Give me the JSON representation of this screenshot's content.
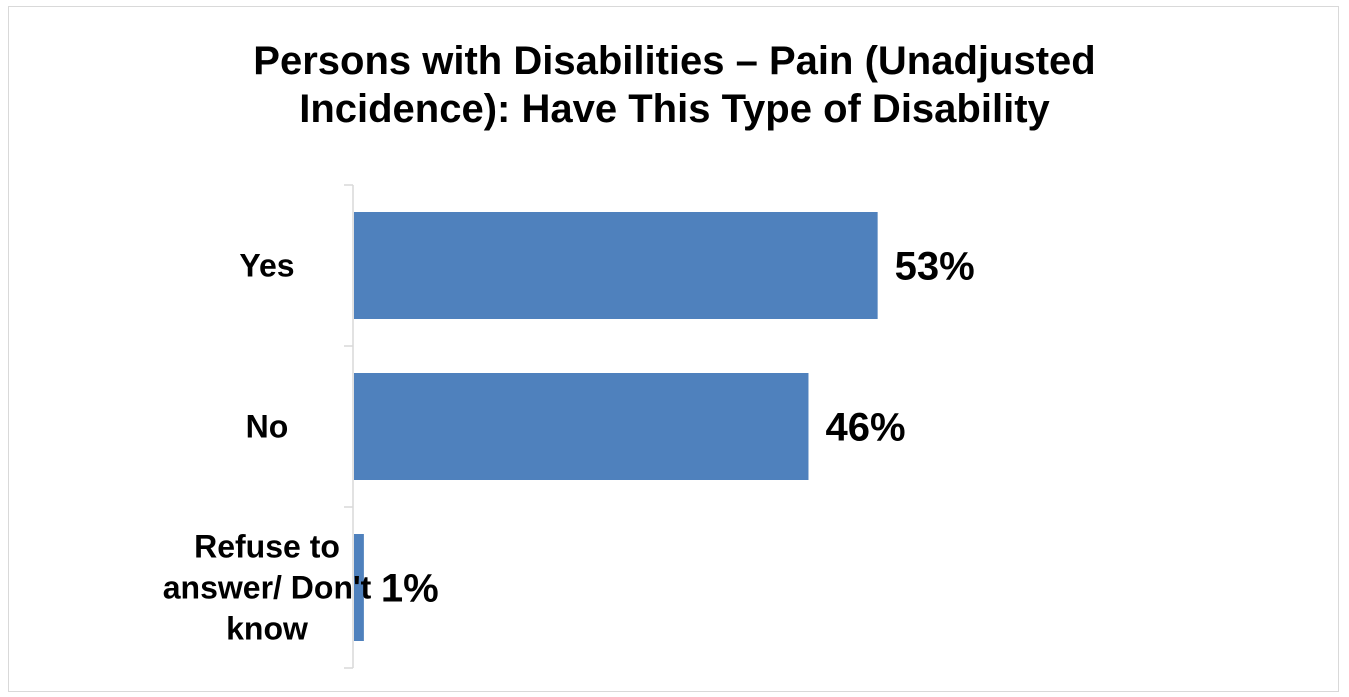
{
  "chart_data": {
    "type": "bar",
    "orientation": "horizontal",
    "title_lines": [
      "Persons with Disabilities – Pain (Unadjusted",
      "Incidence): Have This Type of Disability"
    ],
    "categories": [
      [
        "Yes"
      ],
      [
        "No"
      ],
      [
        "Refuse to",
        "answer/ Don't",
        "know"
      ]
    ],
    "values": [
      53,
      46,
      1
    ],
    "value_labels": [
      "53%",
      "46%",
      "1%"
    ],
    "xlim": [
      0,
      100
    ],
    "gridlines": false,
    "legend": "none",
    "bar_color": "#4F81BD",
    "axis_color": "#d9d9d9"
  }
}
